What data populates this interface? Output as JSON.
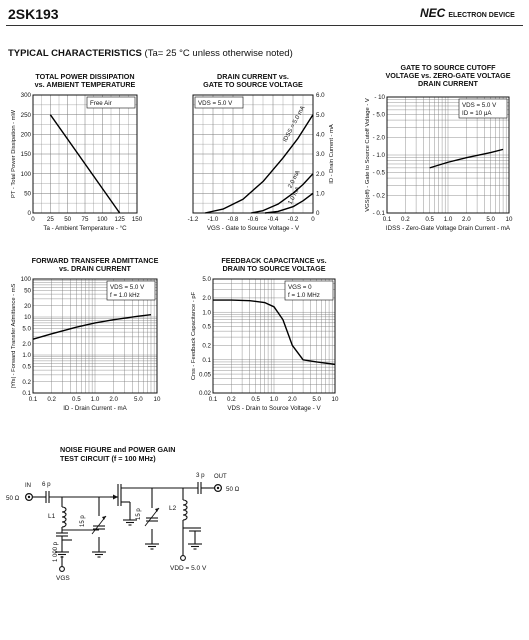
{
  "header": {
    "part_number": "2SK193",
    "brand": "NEC",
    "brand_sub": "ELECTRON DEVICE",
    "section_title": "TYPICAL CHARACTERISTICS",
    "section_condition": "(Ta= 25 °C unless otherwise noted)"
  },
  "chart_data": [
    {
      "id": "pd",
      "type": "line",
      "title": [
        "TOTAL POWER DISSIPATION",
        "vs. AMBIENT TEMPERATURE"
      ],
      "xlabel": "Ta - Ambient Temperature - °C",
      "ylabel": "PT - Total Power Dissipation - mW",
      "xlim": [
        0,
        150
      ],
      "ylim": [
        0,
        300
      ],
      "xticks": [
        "0",
        "25",
        "50",
        "75",
        "100",
        "125",
        "150"
      ],
      "yticks": [
        "0",
        "50",
        "100",
        "150",
        "200",
        "250",
        "300"
      ],
      "annotation": "Free Air",
      "series": [
        {
          "x": [
            25,
            125
          ],
          "y": [
            250,
            0
          ]
        }
      ]
    },
    {
      "id": "id",
      "type": "line",
      "title": [
        "DRAIN CURRENT vs.",
        "GATE TO SOURCE VOLTAGE"
      ],
      "xlabel": "VGS - Gate to Source Voltage - V",
      "ylabel": "ID - Drain Current - mA",
      "xlim": [
        -1.2,
        0
      ],
      "ylim": [
        0,
        6.0
      ],
      "xticks": [
        "-1.2",
        "-1.0",
        "-0.8",
        "-0.6",
        "-0.4",
        "-0.2",
        "0"
      ],
      "yticks": [
        "0",
        "1.0",
        "2.0",
        "3.0",
        "4.0",
        "5.0",
        "6.0"
      ],
      "annotation": "VDS = 5.0 V",
      "series": [
        {
          "name": "IDSS = 5.0 mA",
          "x": [
            -1.08,
            -0.9,
            -0.7,
            -0.5,
            -0.3,
            -0.15,
            0
          ],
          "y": [
            0,
            0.2,
            0.7,
            1.6,
            2.8,
            3.8,
            5.0
          ]
        },
        {
          "name": "2.0 mA",
          "x": [
            -0.62,
            -0.5,
            -0.35,
            -0.2,
            -0.1,
            0
          ],
          "y": [
            0,
            0.12,
            0.45,
            1.0,
            1.45,
            2.0
          ]
        },
        {
          "name": "1.0 mA",
          "x": [
            -0.48,
            -0.35,
            -0.2,
            -0.1,
            0
          ],
          "y": [
            0,
            0.08,
            0.32,
            0.62,
            1.0
          ]
        }
      ]
    },
    {
      "id": "vgs",
      "type": "line",
      "title": [
        "GATE TO SOURCE CUTOFF",
        "VOLTAGE vs. ZERO-GATE VOLTAGE",
        "DRAIN CURRENT"
      ],
      "xlabel": "IDSS - Zero-Gate Voltage Drain Current - mA",
      "ylabel": "VGS(off) - Gate to Source Cutoff Voltage - V",
      "xscale": "log",
      "xlim": [
        0.1,
        10
      ],
      "yscale": "log",
      "ylim": [
        0.1,
        10
      ],
      "xticks": [
        "0.1",
        "0.2",
        "0.5",
        "1.0",
        "2.0",
        "5.0",
        "10"
      ],
      "yticks": [
        "- 0.1",
        "- 0.2",
        "- 0.5",
        "- 1.0",
        "- 2.0",
        "- 5.0",
        "- 10"
      ],
      "annotation": [
        "VDS = 5.0 V",
        "ID = 10 μA"
      ],
      "series": [
        {
          "x": [
            0.5,
            1.0,
            2.0,
            5.0,
            8.0
          ],
          "y": [
            0.6,
            0.75,
            0.9,
            1.1,
            1.25
          ]
        }
      ]
    },
    {
      "id": "yfs",
      "type": "line",
      "title": [
        "FORWARD TRANSFER ADMITTANCE",
        "vs. DRAIN CURRENT"
      ],
      "xlabel": "ID - Drain Current - mA",
      "ylabel": "|Yfs| - Forward Transfer Admittance - mS",
      "xscale": "log",
      "xlim": [
        0.1,
        10
      ],
      "yscale": "log",
      "ylim": [
        0.1,
        100
      ],
      "xticks": [
        "0.1",
        "0.2",
        "0.5",
        "1.0",
        "2.0",
        "5.0",
        "10"
      ],
      "yticks": [
        "0.1",
        "0.2",
        "0.5",
        "1.0",
        "2.0",
        "5.0",
        "10",
        "20",
        "50",
        "100"
      ],
      "annotation": [
        "VDS = 5.0 V",
        "f = 1.0 kHz"
      ],
      "series": [
        {
          "x": [
            0.1,
            0.2,
            0.5,
            1.0,
            2.0,
            5.0,
            8.0
          ],
          "y": [
            2.6,
            3.6,
            5.4,
            7.0,
            8.5,
            10.5,
            11.5
          ]
        }
      ]
    },
    {
      "id": "crss",
      "type": "line",
      "title": [
        "FEEDBACK CAPACITANCE vs.",
        "DRAIN TO SOURCE VOLTAGE"
      ],
      "xlabel": "VDS - Drain to Source Voltage - V",
      "ylabel": "Crss - Feedback Capacitance - pF",
      "xscale": "log",
      "xlim": [
        0.1,
        10
      ],
      "yscale": "log",
      "ylim": [
        0.02,
        5.0
      ],
      "xticks": [
        "0.1",
        "0.2",
        "0.5",
        "1.0",
        "2.0",
        "5.0",
        "10"
      ],
      "yticks": [
        "0.02",
        "0.05",
        "0.1",
        "0.2",
        "0.5",
        "1.0",
        "2.0",
        "5.0"
      ],
      "annotation": [
        "VGS = 0",
        "f = 1.0 MHz"
      ],
      "series": [
        {
          "x": [
            0.1,
            0.2,
            0.4,
            0.7,
            1.0,
            1.4,
            2.0,
            3.0,
            5.0,
            10
          ],
          "y": [
            1.8,
            1.8,
            1.75,
            1.6,
            1.3,
            0.7,
            0.2,
            0.1,
            0.09,
            0.08
          ]
        }
      ]
    }
  ],
  "circuit": {
    "title": [
      "NOISE FIGURE and POWER GAIN",
      "TEST CIRCUIT (f = 100 MHz)"
    ],
    "in_label": "IN",
    "out_label": "OUT",
    "in_ohm": "50 Ω",
    "out_ohm": "50 Ω",
    "c_in": "6 p",
    "c_out": "3 p",
    "l1": "L1",
    "l2": "L2",
    "c_tune1": "15 p",
    "c_tune2": "15 p",
    "c_bypass": "1 000 p",
    "vgs": "VGS",
    "vdd": "VDD = 5.0 V"
  }
}
